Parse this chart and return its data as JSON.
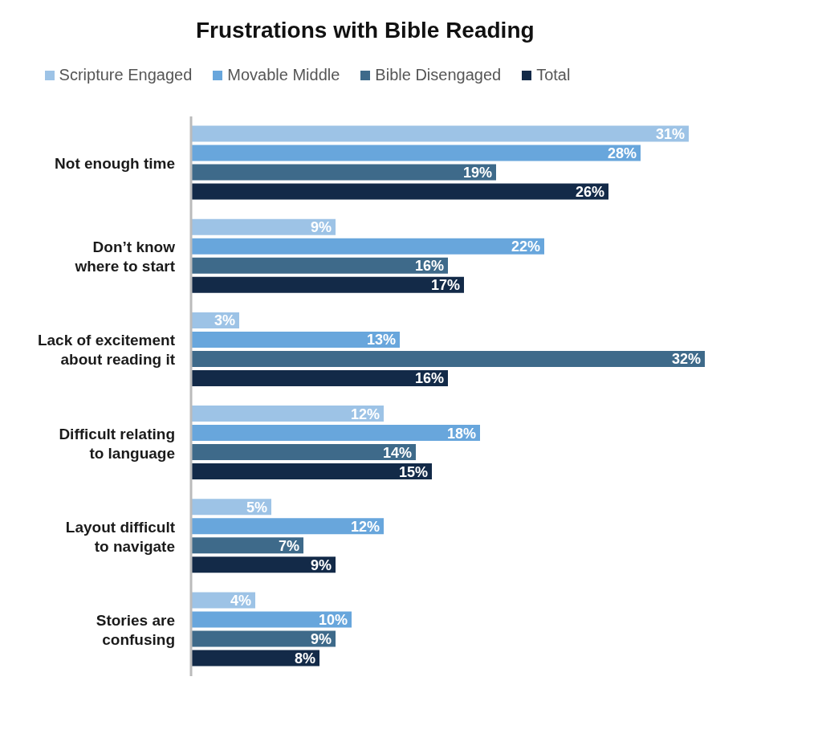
{
  "chart_data": {
    "type": "bar",
    "orientation": "horizontal",
    "title": "Frustrations with Bible Reading",
    "categories": [
      "Not enough time",
      "Don’t know where to start",
      "Lack of excitement about reading it",
      "Difficult relating to language",
      "Layout difficult to navigate",
      "Stories are confusing"
    ],
    "series": [
      {
        "name": "Scripture Engaged",
        "color": "#9dc3e6",
        "values": [
          31,
          9,
          3,
          12,
          5,
          4
        ],
        "value_labels": [
          "31%",
          "9%",
          "3%",
          "12%",
          "5%",
          "4%"
        ]
      },
      {
        "name": "Movable Middle",
        "color": "#68a6dc",
        "values": [
          28,
          22,
          13,
          18,
          12,
          10
        ],
        "value_labels": [
          "28%",
          "22%",
          "13%",
          "18%",
          "12%",
          "10%"
        ]
      },
      {
        "name": "Bible Disengaged",
        "color": "#3e6a8a",
        "values": [
          19,
          16,
          32,
          14,
          7,
          9
        ],
        "value_labels": [
          "19%",
          "16%",
          "32%",
          "14%",
          "7%",
          "9%"
        ]
      },
      {
        "name": "Total",
        "color": "#132a48",
        "values": [
          26,
          17,
          16,
          15,
          9,
          8
        ],
        "value_labels": [
          "26%",
          "17%",
          "16%",
          "15%",
          "9%",
          "8%"
        ]
      }
    ],
    "legend": "top",
    "grid": false
  }
}
